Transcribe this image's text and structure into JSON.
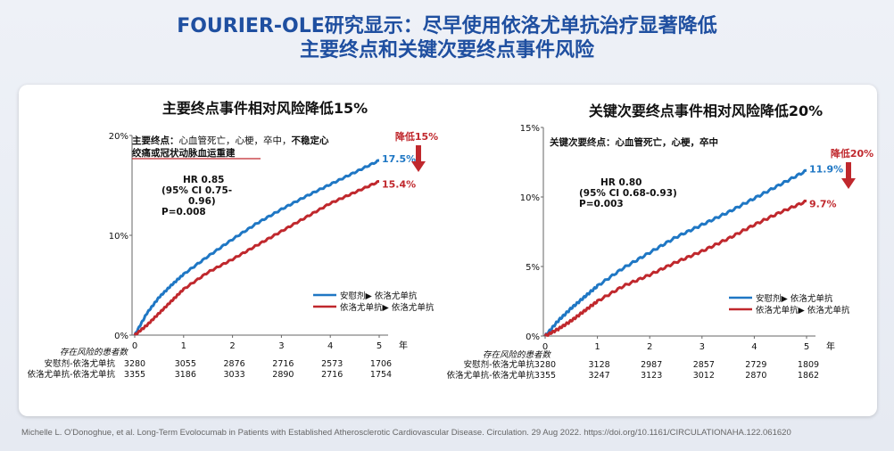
{
  "slide": {
    "title_line1": "FOURIER-OLE研究显示：尽早使用依洛尤单抗治疗显著降低",
    "title_line2": "主要终点和关键次要终点事件风险",
    "footer": "Michelle L. O'Donoghue, et al. Long-Term Evolocumab in Patients with Established Atherosclerotic Cardiovascular Disease. Circulation. 29 Aug 2022. https://doi.org/10.1161/CIRCULATIONAHA.122.061620"
  },
  "colors": {
    "title": "#1f4fa0",
    "blue_series": "#1f77c4",
    "red_series": "#c0282d"
  },
  "chart_data": [
    {
      "type": "line",
      "title": "主要终点事件相对风险降低15%",
      "endpoint_label": "主要终点：",
      "endpoint_text": "心血管死亡，心梗，卒中，",
      "endpoint_highlight_1": "不稳定心",
      "endpoint_highlight_2": "绞痛或冠状动脉血运重建",
      "stats": [
        "HR 0.85",
        "(95% CI 0.75-",
        "0.96)",
        "P=0.008"
      ],
      "reduction_label": "降低15%",
      "xlim": [
        0,
        5
      ],
      "ylim": [
        0,
        20
      ],
      "x_ticks": [
        "0",
        "1",
        "2",
        "3",
        "4",
        "5"
      ],
      "x_unit": "年",
      "y_ticks": [
        "0%",
        "10%",
        "20%"
      ],
      "series": [
        {
          "name": "安慰剂▶ 依洛尤单抗",
          "color": "#1f77c4",
          "end_label": "17.5%",
          "x": [
            0,
            0.25,
            0.5,
            0.75,
            1,
            1.5,
            2,
            2.5,
            3,
            3.5,
            4,
            4.5,
            5
          ],
          "y": [
            0,
            2.2,
            3.8,
            5.0,
            6.1,
            7.9,
            9.6,
            11.2,
            12.6,
            13.9,
            15.1,
            16.3,
            17.5
          ]
        },
        {
          "name": "依洛尤单抗▶ 依洛尤单抗",
          "color": "#c0282d",
          "end_label": "15.4%",
          "x": [
            0,
            0.25,
            0.5,
            0.75,
            1,
            1.5,
            2,
            2.5,
            3,
            3.5,
            4,
            4.5,
            5
          ],
          "y": [
            0,
            1.0,
            2.2,
            3.4,
            4.6,
            6.3,
            7.6,
            9.0,
            10.4,
            11.8,
            13.2,
            14.3,
            15.4
          ]
        }
      ],
      "risk_table": {
        "header": "存在风险的患者数",
        "rows": [
          {
            "label": "安慰剂-依洛尤单抗",
            "values": [
              "3280",
              "3055",
              "2876",
              "2716",
              "2573",
              "1706"
            ]
          },
          {
            "label": "依洛尤单抗-依洛尤单抗",
            "values": [
              "3355",
              "3186",
              "3033",
              "2890",
              "2716",
              "1754"
            ]
          }
        ]
      }
    },
    {
      "type": "line",
      "title": "关键次要终点事件相对风险降低20%",
      "endpoint_label": "关键次要终点：",
      "endpoint_text": "心血管死亡，心梗，卒中",
      "stats": [
        "HR 0.80",
        "(95% CI 0.68-0.93)",
        "P=0.003"
      ],
      "reduction_label": "降低20%",
      "xlim": [
        0,
        5
      ],
      "ylim": [
        0,
        15
      ],
      "x_ticks": [
        "0",
        "1",
        "2",
        "3",
        "4",
        "5"
      ],
      "x_unit": "年",
      "y_ticks": [
        "0%",
        "5%",
        "10%",
        "15%"
      ],
      "series": [
        {
          "name": "安慰剂▶ 依洛尤单抗",
          "color": "#1f77c4",
          "end_label": "11.9%",
          "x": [
            0,
            0.25,
            0.5,
            0.75,
            1,
            1.5,
            2,
            2.5,
            3,
            3.5,
            4,
            4.5,
            5
          ],
          "y": [
            0,
            1.1,
            2.0,
            2.8,
            3.6,
            4.9,
            6.0,
            7.1,
            8.0,
            8.9,
            9.9,
            10.9,
            11.9
          ]
        },
        {
          "name": "依洛尤单抗▶ 依洛尤单抗",
          "color": "#c0282d",
          "end_label": "9.7%",
          "x": [
            0,
            0.25,
            0.5,
            0.75,
            1,
            1.5,
            2,
            2.5,
            3,
            3.5,
            4,
            4.5,
            5
          ],
          "y": [
            0,
            0.5,
            1.1,
            1.8,
            2.5,
            3.6,
            4.4,
            5.3,
            6.1,
            7.0,
            8.0,
            8.9,
            9.7
          ]
        }
      ],
      "risk_table": {
        "header": "存在风险的患者数",
        "rows": [
          {
            "label": "安慰剂-依洛尤单抗",
            "values": [
              "3280",
              "3128",
              "2987",
              "2857",
              "2729",
              "1809"
            ]
          },
          {
            "label": "依洛尤单抗-依洛尤单抗",
            "values": [
              "3355",
              "3247",
              "3123",
              "3012",
              "2870",
              "1862"
            ]
          }
        ]
      }
    }
  ]
}
